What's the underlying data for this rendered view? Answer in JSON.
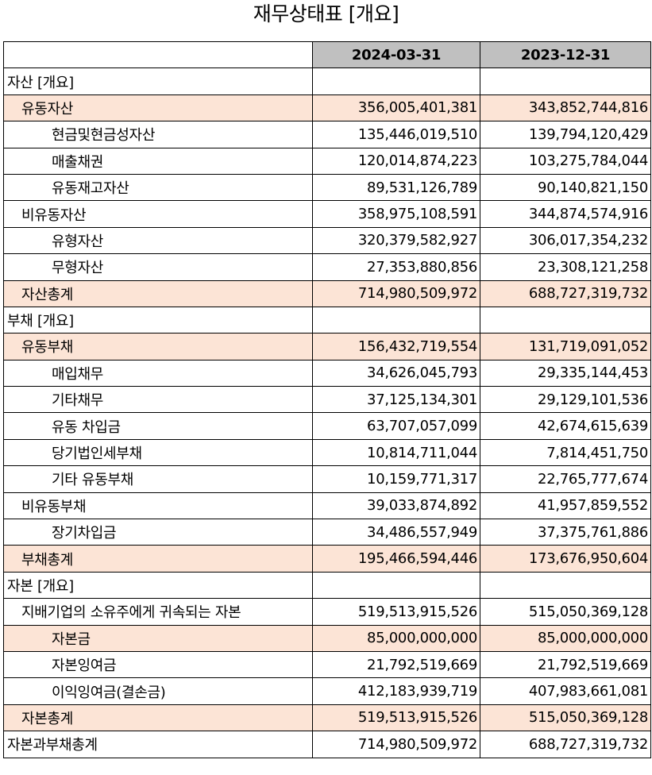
{
  "title": "재무상태표 [개요]",
  "columns": [
    "",
    "2024-03-31",
    "2023-12-31"
  ],
  "colors": {
    "header_bg": "#c0c0c0",
    "highlight_bg": "#fce4d6",
    "border": "#000000"
  },
  "rows": [
    {
      "label": "자산 [개요]",
      "indent": 0,
      "shade": false,
      "v2024": "",
      "v2023": ""
    },
    {
      "label": "유동자산",
      "indent": 1,
      "shade": true,
      "v2024": "356,005,401,381",
      "v2023": "343,852,744,816"
    },
    {
      "label": "현금및현금성자산",
      "indent": 2,
      "shade": false,
      "v2024": "135,446,019,510",
      "v2023": "139,794,120,429"
    },
    {
      "label": "매출채권",
      "indent": 2,
      "shade": false,
      "v2024": "120,014,874,223",
      "v2023": "103,275,784,044"
    },
    {
      "label": "유동재고자산",
      "indent": 2,
      "shade": false,
      "v2024": "89,531,126,789",
      "v2023": "90,140,821,150"
    },
    {
      "label": "비유동자산",
      "indent": 1,
      "shade": false,
      "v2024": "358,975,108,591",
      "v2023": "344,874,574,916"
    },
    {
      "label": "유형자산",
      "indent": 2,
      "shade": false,
      "v2024": "320,379,582,927",
      "v2023": "306,017,354,232"
    },
    {
      "label": "무형자산",
      "indent": 2,
      "shade": false,
      "v2024": "27,353,880,856",
      "v2023": "23,308,121,258"
    },
    {
      "label": "자산총계",
      "indent": 1,
      "shade": true,
      "v2024": "714,980,509,972",
      "v2023": "688,727,319,732"
    },
    {
      "label": "부채 [개요]",
      "indent": 0,
      "shade": false,
      "v2024": "",
      "v2023": ""
    },
    {
      "label": "유동부채",
      "indent": 1,
      "shade": true,
      "v2024": "156,432,719,554",
      "v2023": "131,719,091,052"
    },
    {
      "label": "매입채무",
      "indent": 2,
      "shade": false,
      "v2024": "34,626,045,793",
      "v2023": "29,335,144,453"
    },
    {
      "label": "기타채무",
      "indent": 2,
      "shade": false,
      "v2024": "37,125,134,301",
      "v2023": "29,129,101,536"
    },
    {
      "label": "유동 차입금",
      "indent": 2,
      "shade": false,
      "v2024": "63,707,057,099",
      "v2023": "42,674,615,639"
    },
    {
      "label": "당기법인세부채",
      "indent": 2,
      "shade": false,
      "v2024": "10,814,711,044",
      "v2023": "7,814,451,750"
    },
    {
      "label": "기타 유동부채",
      "indent": 2,
      "shade": false,
      "v2024": "10,159,771,317",
      "v2023": "22,765,777,674"
    },
    {
      "label": "비유동부채",
      "indent": 1,
      "shade": false,
      "v2024": "39,033,874,892",
      "v2023": "41,957,859,552"
    },
    {
      "label": "장기차입금",
      "indent": 2,
      "shade": false,
      "v2024": "34,486,557,949",
      "v2023": "37,375,761,886"
    },
    {
      "label": "부채총계",
      "indent": 1,
      "shade": true,
      "v2024": "195,466,594,446",
      "v2023": "173,676,950,604"
    },
    {
      "label": "자본 [개요]",
      "indent": 0,
      "shade": false,
      "v2024": "",
      "v2023": ""
    },
    {
      "label": "지배기업의 소유주에게 귀속되는 자본",
      "indent": 1,
      "shade": false,
      "v2024": "519,513,915,526",
      "v2023": "515,050,369,128"
    },
    {
      "label": "자본금",
      "indent": 2,
      "shade": true,
      "v2024": "85,000,000,000",
      "v2023": "85,000,000,000"
    },
    {
      "label": "자본잉여금",
      "indent": 2,
      "shade": false,
      "v2024": "21,792,519,669",
      "v2023": "21,792,519,669"
    },
    {
      "label": "이익잉여금(결손금)",
      "indent": 2,
      "shade": false,
      "v2024": "412,183,939,719",
      "v2023": "407,983,661,081"
    },
    {
      "label": "자본총계",
      "indent": 1,
      "shade": true,
      "v2024": "519,513,915,526",
      "v2023": "515,050,369,128"
    },
    {
      "label": "자본과부채총계",
      "indent": 0,
      "shade": false,
      "v2024": "714,980,509,972",
      "v2023": "688,727,319,732"
    }
  ]
}
